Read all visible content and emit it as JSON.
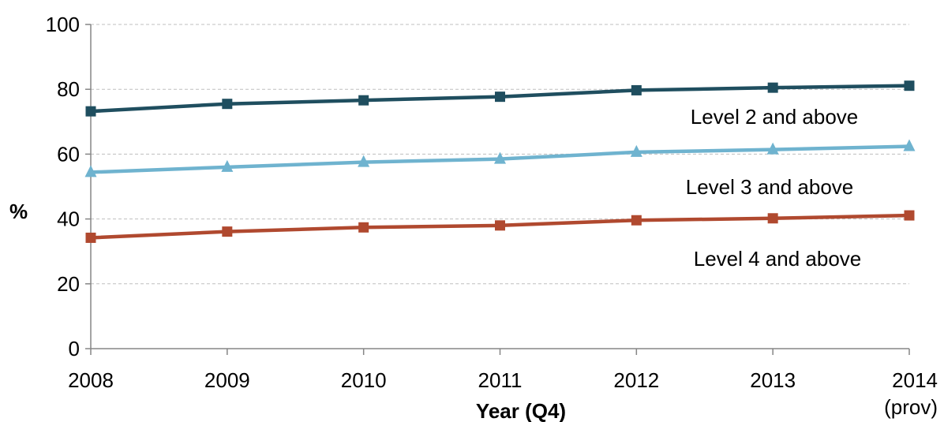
{
  "chart_data": {
    "type": "line",
    "title": "",
    "xlabel": "Year (Q4)",
    "ylabel": "%",
    "categories": [
      "2008",
      "2009",
      "2010",
      "2011",
      "2012",
      "2013",
      "2014"
    ],
    "category_sublabels": [
      "",
      "",
      "",
      "",
      "",
      "",
      "(prov)"
    ],
    "ylim": [
      0,
      100
    ],
    "yticks": [
      0,
      20,
      40,
      60,
      80,
      100
    ],
    "grid": true,
    "legend": "inline labels at right",
    "series": [
      {
        "name": "Level 2 and above",
        "values": [
          73.2,
          75.5,
          76.6,
          77.7,
          79.7,
          80.5,
          81.1
        ],
        "color": "#1f4e5f",
        "marker": "square"
      },
      {
        "name": "Level 3 and above",
        "values": [
          54.4,
          56.0,
          57.5,
          58.5,
          60.6,
          61.4,
          62.4
        ],
        "color": "#6fb3cf",
        "marker": "triangle"
      },
      {
        "name": "Level 4 and above",
        "values": [
          34.2,
          36.1,
          37.4,
          38.0,
          39.6,
          40.2,
          41.1
        ],
        "color": "#b0492f",
        "marker": "square"
      }
    ]
  }
}
